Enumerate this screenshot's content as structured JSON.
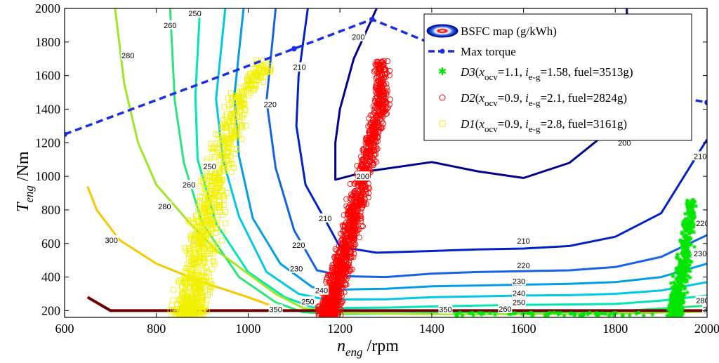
{
  "chart_data": {
    "type": "scatter",
    "title": "",
    "xlim": [
      600,
      2000
    ],
    "ylim": [
      160,
      2000
    ],
    "x_ticks": [
      "600",
      "800",
      "1000",
      "1200",
      "1400",
      "1600",
      "1800",
      "2000"
    ],
    "y_ticks": [
      "200",
      "400",
      "600",
      "800",
      "1000",
      "1200",
      "1400",
      "1600",
      "1800",
      "2000"
    ],
    "xlabel": {
      "main": "n",
      "sub": "eng",
      "unit": " /rpm"
    },
    "ylabel": {
      "main": "T",
      "sub": "eng",
      "unit": " /Nm"
    },
    "legend": [
      {
        "id": "bsfc",
        "label": "BSFC map (g/kWh)"
      },
      {
        "id": "maxtorque",
        "label": "Max torque"
      },
      {
        "id": "d3",
        "name": "D3",
        "x_ocv": "1.1",
        "i_eg": "1.58",
        "fuel": "3513g"
      },
      {
        "id": "d2",
        "name": "D2",
        "x_ocv": "0.9",
        "i_eg": "2.1",
        "fuel": "2824g"
      },
      {
        "id": "d1",
        "name": "D1",
        "x_ocv": "0.9",
        "i_eg": "2.8",
        "fuel": "3161g"
      }
    ],
    "legend_labels": {
      "x": "x",
      "x_sub": "ocv",
      "i": "i",
      "i_sub": "e-g",
      "fuel": "fuel"
    },
    "max_torque": {
      "color": "#1a2ee6",
      "points": [
        [
          600,
          1250
        ],
        [
          1100,
          1760
        ],
        [
          1270,
          1935
        ],
        [
          1400,
          1790
        ],
        [
          1600,
          1640
        ],
        [
          2000,
          1440
        ]
      ]
    },
    "contours": [
      {
        "level": "200",
        "color": "#00008f",
        "points": [
          [
            1280,
            2000
          ],
          [
            1230,
            1700
          ],
          [
            1200,
            1400
          ],
          [
            1190,
            1200
          ],
          [
            1190,
            980
          ],
          [
            1260,
            1030
          ],
          [
            1400,
            1085
          ],
          [
            1500,
            1030
          ],
          [
            1600,
            990
          ],
          [
            1700,
            1080
          ],
          [
            1800,
            1300
          ],
          [
            1830,
            1600
          ],
          [
            1825,
            2000
          ]
        ],
        "labels": [
          [
            1240,
            1830,
            "200"
          ],
          [
            1250,
            1000,
            "200"
          ],
          [
            1820,
            1200,
            "200"
          ]
        ]
      },
      {
        "level": "210",
        "color": "#0022c8",
        "points": [
          [
            1130,
            2000
          ],
          [
            1110,
            1600
          ],
          [
            1105,
            1300
          ],
          [
            1125,
            950
          ],
          [
            1170,
            730
          ],
          [
            1200,
            580
          ],
          [
            1280,
            545
          ],
          [
            1400,
            555
          ],
          [
            1500,
            565
          ],
          [
            1600,
            570
          ],
          [
            1700,
            585
          ],
          [
            1800,
            640
          ],
          [
            1900,
            780
          ],
          [
            1950,
            1000
          ],
          [
            2000,
            1220
          ]
        ],
        "labels": [
          [
            1112,
            1650,
            "210"
          ],
          [
            1168,
            750,
            "210"
          ],
          [
            1600,
            615,
            "210"
          ],
          [
            1985,
            1120,
            "210"
          ]
        ]
      },
      {
        "level": "220",
        "color": "#1462e6",
        "points": [
          [
            1060,
            2000
          ],
          [
            1040,
            1450
          ],
          [
            1060,
            1050
          ],
          [
            1100,
            680
          ],
          [
            1150,
            440
          ],
          [
            1210,
            405
          ],
          [
            1300,
            400
          ],
          [
            1400,
            420
          ],
          [
            1500,
            430
          ],
          [
            1600,
            435
          ],
          [
            1700,
            440
          ],
          [
            1800,
            460
          ],
          [
            1900,
            520
          ],
          [
            2000,
            650
          ]
        ],
        "labels": [
          [
            1048,
            1430,
            "220"
          ],
          [
            1110,
            590,
            "220"
          ],
          [
            1600,
            470,
            "220"
          ],
          [
            1990,
            720,
            "220"
          ]
        ]
      },
      {
        "level": "230",
        "color": "#009ee6",
        "points": [
          [
            990,
            2000
          ],
          [
            970,
            1480
          ],
          [
            980,
            1120
          ],
          [
            1010,
            750
          ],
          [
            1070,
            480
          ],
          [
            1140,
            340
          ],
          [
            1200,
            325
          ],
          [
            1300,
            330
          ],
          [
            1400,
            345
          ],
          [
            1500,
            350
          ],
          [
            1600,
            355
          ],
          [
            1700,
            360
          ],
          [
            1800,
            370
          ],
          [
            1900,
            400
          ],
          [
            2000,
            480
          ]
        ],
        "labels": [
          [
            1105,
            450,
            "230"
          ],
          [
            1590,
            375,
            "230"
          ],
          [
            1985,
            540,
            "230"
          ]
        ]
      },
      {
        "level": "240",
        "color": "#00c8e6",
        "points": [
          [
            950,
            2000
          ],
          [
            930,
            1460
          ],
          [
            945,
            1100
          ],
          [
            980,
            760
          ],
          [
            1040,
            430
          ],
          [
            1110,
            300
          ],
          [
            1170,
            265
          ],
          [
            1300,
            268
          ],
          [
            1400,
            280
          ],
          [
            1500,
            285
          ],
          [
            1600,
            290
          ],
          [
            1700,
            292
          ],
          [
            1800,
            300
          ],
          [
            1900,
            320
          ],
          [
            2000,
            370
          ]
        ],
        "labels": [
          [
            1160,
            320,
            "240"
          ],
          [
            1590,
            305,
            "240"
          ]
        ]
      },
      {
        "level": "250",
        "color": "#00e6b4",
        "points": [
          [
            895,
            2000
          ],
          [
            885,
            1480
          ],
          [
            890,
            1100
          ],
          [
            930,
            720
          ],
          [
            1000,
            430
          ],
          [
            1080,
            280
          ],
          [
            1140,
            220
          ],
          [
            1200,
            215
          ],
          [
            1300,
            218
          ],
          [
            1400,
            225
          ],
          [
            1500,
            230
          ],
          [
            1600,
            235
          ],
          [
            1700,
            237
          ],
          [
            1800,
            240
          ],
          [
            1900,
            260
          ],
          [
            2000,
            290
          ]
        ],
        "labels": [
          [
            884,
            1970,
            "250"
          ],
          [
            1130,
            255,
            "250"
          ],
          [
            1590,
            250,
            "250"
          ],
          [
            916,
            1060,
            "250"
          ]
        ]
      },
      {
        "level": "260",
        "color": "#28e67d",
        "points": [
          [
            830,
            2000
          ],
          [
            840,
            1450
          ],
          [
            860,
            1080
          ],
          [
            900,
            720
          ],
          [
            980,
            400
          ],
          [
            1060,
            250
          ],
          [
            1120,
            190
          ],
          [
            1200,
            180
          ],
          [
            1400,
            185
          ],
          [
            1600,
            192
          ],
          [
            1800,
            195
          ],
          [
            2000,
            230
          ]
        ],
        "labels": [
          [
            830,
            1900,
            "260"
          ],
          [
            871,
            950,
            "260"
          ],
          [
            1560,
            210,
            "260"
          ]
        ]
      },
      {
        "level": "280",
        "color": "#9ee628",
        "points": [
          [
            710,
            2000
          ],
          [
            730,
            1550
          ],
          [
            760,
            1200
          ],
          [
            800,
            950
          ],
          [
            870,
            730
          ],
          [
            930,
            560
          ],
          [
            1000,
            420
          ],
          [
            1060,
            300
          ],
          [
            1120,
            215
          ],
          [
            1200,
            185
          ],
          [
            1400,
            180
          ],
          [
            1600,
            180
          ],
          [
            1800,
            182
          ],
          [
            2000,
            195
          ]
        ],
        "labels": [
          [
            738,
            1720,
            "280"
          ],
          [
            818,
            820,
            "280"
          ],
          [
            1990,
            260,
            "280"
          ]
        ]
      },
      {
        "level": "300",
        "color": "#f5c800",
        "points": [
          [
            650,
            940
          ],
          [
            670,
            800
          ],
          [
            720,
            620
          ],
          [
            800,
            480
          ],
          [
            900,
            370
          ],
          [
            1000,
            280
          ],
          [
            1080,
            200
          ]
        ],
        "labels": [
          [
            702,
            620,
            "300"
          ]
        ]
      },
      {
        "level": "350",
        "color": "#6e0000",
        "width": 4,
        "points": [
          [
            650,
            280
          ],
          [
            700,
            200
          ],
          [
            2000,
            200
          ]
        ],
        "labels": [
          [
            1060,
            208,
            "350"
          ],
          [
            1430,
            208,
            "350"
          ],
          [
            2005,
            208,
            "350"
          ]
        ]
      }
    ],
    "series": [
      {
        "name": "D1",
        "marker": "square",
        "color": "#f0f000",
        "clusters": [
          {
            "count": 900,
            "x": [
              855,
              1060
            ],
            "y": [
              170,
              1700
            ],
            "shape": "band",
            "center": [
              [
                200,
                870
              ],
              [
                600,
                900
              ],
              [
                1000,
                930
              ],
              [
                1450,
                980
              ],
              [
                1650,
                1030
              ]
            ],
            "width": 45
          }
        ]
      },
      {
        "name": "D2",
        "marker": "circle",
        "color": "#ff0000",
        "clusters": [
          {
            "count": 1400,
            "x": [
              1155,
              1330
            ],
            "y": [
              170,
              1690
            ],
            "shape": "band",
            "center": [
              [
                190,
                1175
              ],
              [
                400,
                1195
              ],
              [
                700,
                1225
              ],
              [
                1000,
                1250
              ],
              [
                1200,
                1270
              ],
              [
                1400,
                1290
              ]
            ],
            "width": 28
          }
        ]
      },
      {
        "name": "D3",
        "marker": "star",
        "color": "#00e600",
        "clusters": [
          {
            "count": 600,
            "x": [
              1890,
              2000
            ],
            "y": [
              170,
              860
            ],
            "shape": "band",
            "center": [
              [
                200,
                1930
              ],
              [
                500,
                1950
              ],
              [
                800,
                1965
              ]
            ],
            "width": 22
          },
          {
            "count": 70,
            "x": [
              1440,
              1890
            ],
            "y": [
              170,
              190
            ],
            "shape": "line",
            "center": [
              [
                175,
                1440
              ],
              [
                175,
                1890
              ]
            ],
            "width": 0
          }
        ]
      }
    ]
  }
}
